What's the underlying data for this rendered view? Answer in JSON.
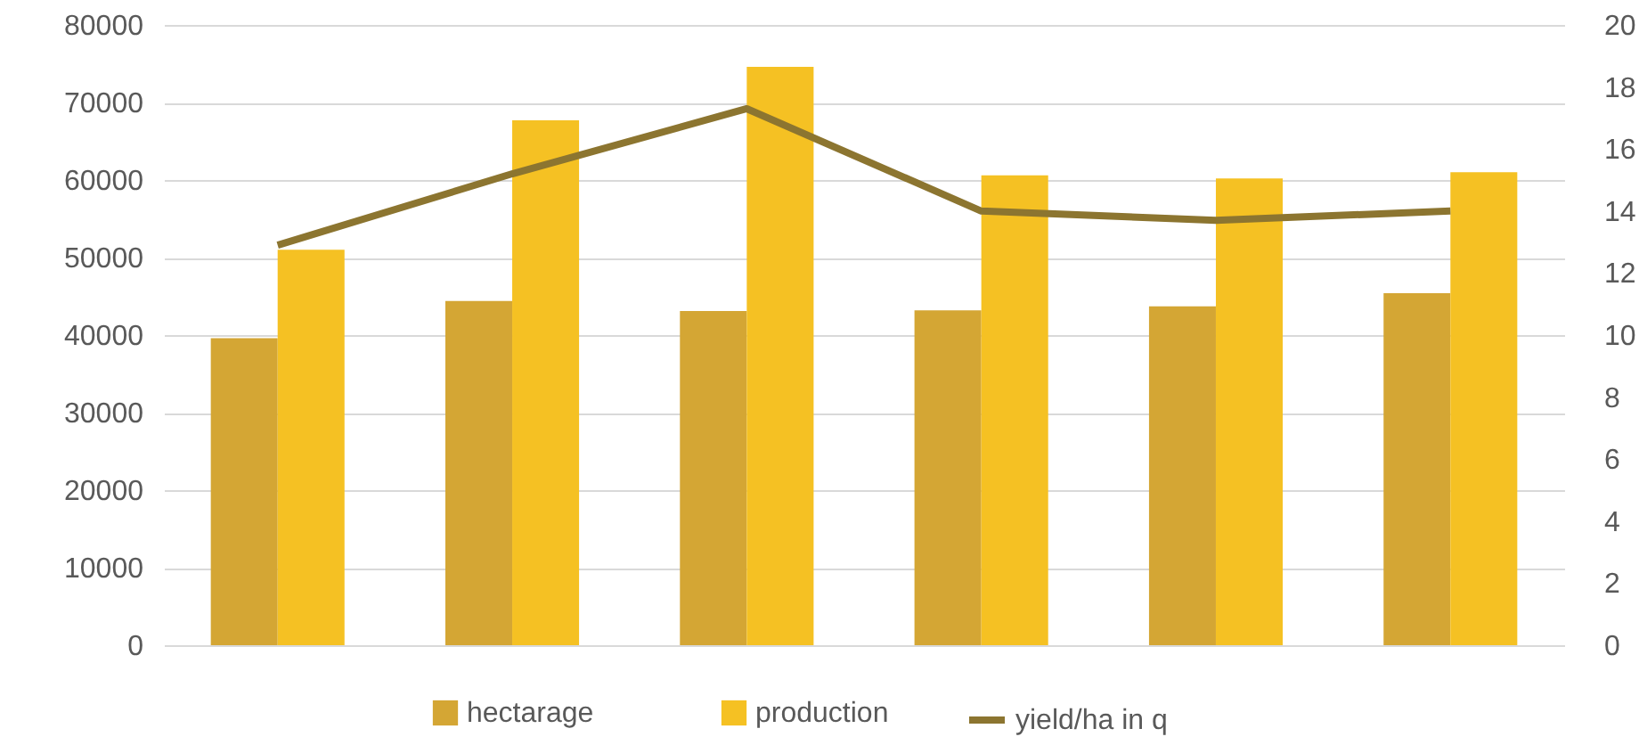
{
  "chart_data": {
    "type": "bar",
    "categories": [
      null,
      null,
      null,
      null,
      null,
      null
    ],
    "series": [
      {
        "name": "hectarage",
        "color": "#d4a634",
        "values": [
          39600,
          44400,
          43100,
          43200,
          43700,
          45400
        ]
      },
      {
        "name": "production",
        "color": "#f5c123",
        "values": [
          51000,
          67700,
          74600,
          60600,
          60200,
          61000
        ]
      },
      {
        "name": "yield/ha in q",
        "type": "line",
        "axis": "y2",
        "color": "#8c7530",
        "values": [
          12.9,
          15.2,
          17.3,
          14.0,
          13.7,
          14.0
        ]
      }
    ],
    "ylim": [
      0,
      80000
    ],
    "yticks": [
      0,
      10000,
      20000,
      30000,
      40000,
      50000,
      60000,
      70000,
      80000
    ],
    "y2lim": [
      0,
      20
    ],
    "y2ticks": [
      0,
      2,
      4,
      6,
      8,
      10,
      12,
      14,
      16,
      18,
      20
    ],
    "grid": "y",
    "legend": "bottom"
  }
}
